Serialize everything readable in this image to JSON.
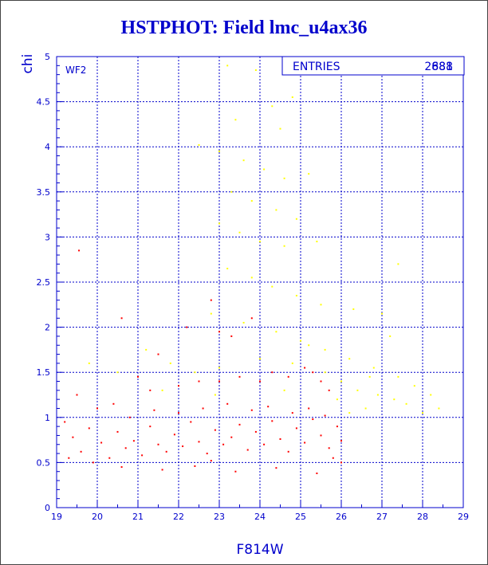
{
  "title": "HSTPHOT: Field lmc_u4ax36",
  "panel_label": "WF2",
  "stats": {
    "label": "ENTRIES",
    "values": [
      "2681",
      "888"
    ]
  },
  "colors": {
    "frame": "#0000cc",
    "grid": "#0000cc",
    "series_bright": "#ff0000",
    "series_faint": "#ffff00"
  },
  "chart_data": {
    "type": "scatter",
    "xlabel": "F814W",
    "ylabel": "chi",
    "xlim": [
      19,
      29
    ],
    "ylim": [
      0,
      5
    ],
    "xticks": [
      19,
      20,
      21,
      22,
      23,
      24,
      25,
      26,
      27,
      28,
      29
    ],
    "yticks": [
      0,
      0.5,
      1,
      1.5,
      2,
      2.5,
      3,
      3.5,
      4,
      4.5,
      5
    ],
    "grid": true,
    "series": [
      {
        "color": "#ff0000",
        "points": [
          [
            19.55,
            2.85
          ],
          [
            20.6,
            2.1
          ],
          [
            22.2,
            2.0
          ],
          [
            22.8,
            2.3
          ],
          [
            23.0,
            1.95
          ],
          [
            23.3,
            1.9
          ],
          [
            23.8,
            2.1
          ],
          [
            21.5,
            1.7
          ],
          [
            21.0,
            1.45
          ],
          [
            21.3,
            1.3
          ],
          [
            22.0,
            1.35
          ],
          [
            22.5,
            1.4
          ],
          [
            23.0,
            1.4
          ],
          [
            23.5,
            1.45
          ],
          [
            24.0,
            1.4
          ],
          [
            24.3,
            1.5
          ],
          [
            24.7,
            1.45
          ],
          [
            25.1,
            1.55
          ],
          [
            25.3,
            1.5
          ],
          [
            25.5,
            1.4
          ],
          [
            25.7,
            1.3
          ],
          [
            19.5,
            1.25
          ],
          [
            20.0,
            1.1
          ],
          [
            20.4,
            1.15
          ],
          [
            19.2,
            0.95
          ],
          [
            19.4,
            0.78
          ],
          [
            19.6,
            0.62
          ],
          [
            19.8,
            0.88
          ],
          [
            20.1,
            0.72
          ],
          [
            20.3,
            0.55
          ],
          [
            20.5,
            0.84
          ],
          [
            20.7,
            0.66
          ],
          [
            20.9,
            0.74
          ],
          [
            21.1,
            0.58
          ],
          [
            21.3,
            0.9
          ],
          [
            21.5,
            0.7
          ],
          [
            21.7,
            0.62
          ],
          [
            21.9,
            0.81
          ],
          [
            22.1,
            0.68
          ],
          [
            22.3,
            0.95
          ],
          [
            22.5,
            0.73
          ],
          [
            22.7,
            0.6
          ],
          [
            22.9,
            0.86
          ],
          [
            23.1,
            0.7
          ],
          [
            23.3,
            0.78
          ],
          [
            23.5,
            0.92
          ],
          [
            23.7,
            0.64
          ],
          [
            23.9,
            0.84
          ],
          [
            24.1,
            0.7
          ],
          [
            24.3,
            0.96
          ],
          [
            24.5,
            0.76
          ],
          [
            24.7,
            0.62
          ],
          [
            24.9,
            0.88
          ],
          [
            25.1,
            0.72
          ],
          [
            25.3,
            0.98
          ],
          [
            25.5,
            0.8
          ],
          [
            25.7,
            0.66
          ],
          [
            25.9,
            0.9
          ],
          [
            26.0,
            0.74
          ],
          [
            25.8,
            0.55
          ],
          [
            25.6,
            1.02
          ],
          [
            25.2,
            1.1
          ],
          [
            24.8,
            1.05
          ],
          [
            24.2,
            1.12
          ],
          [
            23.8,
            1.08
          ],
          [
            23.2,
            1.15
          ],
          [
            22.6,
            1.1
          ],
          [
            22.0,
            1.05
          ],
          [
            21.4,
            1.08
          ],
          [
            20.8,
            1.0
          ],
          [
            19.9,
            0.5
          ],
          [
            20.6,
            0.45
          ],
          [
            21.6,
            0.42
          ],
          [
            22.4,
            0.46
          ],
          [
            23.4,
            0.4
          ],
          [
            24.4,
            0.44
          ],
          [
            25.4,
            0.38
          ],
          [
            26.0,
            0.5
          ],
          [
            19.3,
            0.55
          ],
          [
            22.8,
            0.52
          ]
        ]
      },
      {
        "color": "#ffff00",
        "points": [
          [
            23.2,
            4.9
          ],
          [
            23.9,
            4.85
          ],
          [
            24.3,
            4.45
          ],
          [
            24.8,
            4.55
          ],
          [
            23.4,
            4.3
          ],
          [
            24.5,
            4.2
          ],
          [
            22.5,
            4.02
          ],
          [
            23.0,
            3.95
          ],
          [
            23.6,
            3.85
          ],
          [
            24.1,
            3.75
          ],
          [
            24.6,
            3.65
          ],
          [
            25.2,
            3.7
          ],
          [
            23.3,
            3.5
          ],
          [
            23.8,
            3.4
          ],
          [
            24.4,
            3.3
          ],
          [
            24.9,
            3.2
          ],
          [
            23.0,
            3.15
          ],
          [
            23.5,
            3.05
          ],
          [
            24.0,
            2.95
          ],
          [
            24.6,
            2.9
          ],
          [
            25.4,
            2.95
          ],
          [
            27.4,
            2.7
          ],
          [
            23.2,
            2.65
          ],
          [
            23.8,
            2.55
          ],
          [
            24.3,
            2.45
          ],
          [
            24.9,
            2.35
          ],
          [
            25.5,
            2.25
          ],
          [
            26.3,
            2.2
          ],
          [
            27.0,
            2.15
          ],
          [
            27.2,
            1.9
          ],
          [
            22.8,
            2.15
          ],
          [
            23.6,
            2.05
          ],
          [
            24.4,
            1.95
          ],
          [
            25.0,
            1.85
          ],
          [
            25.6,
            1.75
          ],
          [
            26.2,
            1.65
          ],
          [
            26.8,
            1.55
          ],
          [
            27.4,
            1.45
          ],
          [
            27.8,
            1.35
          ],
          [
            28.2,
            1.25
          ],
          [
            28.4,
            1.1
          ],
          [
            21.2,
            1.75
          ],
          [
            21.8,
            1.6
          ],
          [
            22.4,
            1.5
          ],
          [
            23.0,
            1.55
          ],
          [
            24.0,
            1.65
          ],
          [
            24.8,
            1.6
          ],
          [
            25.2,
            1.8
          ],
          [
            25.6,
            1.5
          ],
          [
            26.0,
            1.4
          ],
          [
            26.4,
            1.3
          ],
          [
            26.9,
            1.25
          ],
          [
            27.3,
            1.2
          ],
          [
            26.6,
            1.1
          ],
          [
            26.2,
            1.05
          ],
          [
            19.8,
            1.6
          ],
          [
            20.5,
            1.5
          ],
          [
            21.6,
            1.3
          ],
          [
            22.9,
            1.25
          ],
          [
            24.6,
            1.3
          ],
          [
            25.9,
            1.2
          ],
          [
            28.0,
            1.05
          ],
          [
            27.6,
            1.15
          ],
          [
            26.7,
            1.45
          ]
        ]
      }
    ]
  }
}
